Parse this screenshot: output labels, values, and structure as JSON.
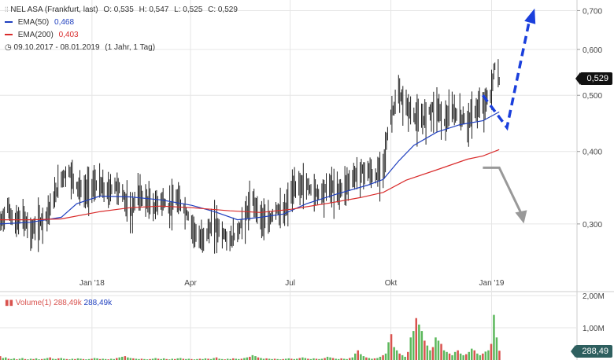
{
  "header": {
    "title": "NEL ASA (Frankfurt, last)",
    "open": "O: 0,535",
    "high": "H: 0,547",
    "low": "L: 0,525",
    "close": "C: 0,529",
    "ema50_label": "EMA(50)",
    "ema50_value": "0,468",
    "ema200_label": "EMA(200)",
    "ema200_value": "0,403",
    "range": "09.10.2017 - 08.01.2019",
    "period": "(1 Jahr, 1 Tag)"
  },
  "price_tag": "0,529",
  "volume": {
    "label": "Volume(1)",
    "value1": "288,49k",
    "value2": "288,49k",
    "tag": "288,49"
  },
  "colors": {
    "price": "#222222",
    "ema50": "#1f3fbf",
    "ema200": "#d92b2b",
    "vol_up": "#5cb85c",
    "vol_down": "#d9534f",
    "arrow_up": "#1a3fdc",
    "arrow_down": "#999999"
  },
  "chart_data": {
    "type": "line",
    "scale": "log",
    "y_ticks": [
      {
        "label": "0,700",
        "value": 0.7
      },
      {
        "label": "0,600",
        "value": 0.6
      },
      {
        "label": "0,500",
        "value": 0.5
      },
      {
        "label": "0,400",
        "value": 0.4
      },
      {
        "label": "0,300",
        "value": 0.3
      }
    ],
    "x_ticks": [
      {
        "label": "Jan '18",
        "date": "2018-01-01"
      },
      {
        "label": "Apr",
        "date": "2018-04-01"
      },
      {
        "label": "Jul",
        "date": "2018-07-01"
      },
      {
        "label": "Okt",
        "date": "2018-10-01"
      },
      {
        "label": "Jan '19",
        "date": "2019-01-01"
      }
    ],
    "x_range": [
      "2017-10-09",
      "2019-03-20"
    ],
    "y_range": [
      0.23,
      0.73
    ],
    "grid": true,
    "series": [
      {
        "name": "NEL ASA",
        "points": [
          [
            "2017-10-09",
            0.3
          ],
          [
            "2017-10-16",
            0.32
          ],
          [
            "2017-10-23",
            0.3
          ],
          [
            "2017-10-30",
            0.31
          ],
          [
            "2017-11-06",
            0.29
          ],
          [
            "2017-11-13",
            0.3
          ],
          [
            "2017-11-20",
            0.31
          ],
          [
            "2017-11-27",
            0.33
          ],
          [
            "2017-12-04",
            0.36
          ],
          [
            "2017-12-11",
            0.37
          ],
          [
            "2017-12-18",
            0.35
          ],
          [
            "2017-12-25",
            0.34
          ],
          [
            "2018-01-01",
            0.35
          ],
          [
            "2018-01-08",
            0.35
          ],
          [
            "2018-01-15",
            0.34
          ],
          [
            "2018-01-22",
            0.35
          ],
          [
            "2018-01-29",
            0.34
          ],
          [
            "2018-02-05",
            0.31
          ],
          [
            "2018-02-12",
            0.34
          ],
          [
            "2018-02-19",
            0.33
          ],
          [
            "2018-02-26",
            0.32
          ],
          [
            "2018-03-05",
            0.33
          ],
          [
            "2018-03-12",
            0.32
          ],
          [
            "2018-03-19",
            0.33
          ],
          [
            "2018-03-26",
            0.32
          ],
          [
            "2018-04-02",
            0.3
          ],
          [
            "2018-04-09",
            0.28
          ],
          [
            "2018-04-16",
            0.29
          ],
          [
            "2018-04-23",
            0.3
          ],
          [
            "2018-04-30",
            0.29
          ],
          [
            "2018-05-07",
            0.28
          ],
          [
            "2018-05-14",
            0.29
          ],
          [
            "2018-05-21",
            0.31
          ],
          [
            "2018-05-28",
            0.33
          ],
          [
            "2018-06-04",
            0.31
          ],
          [
            "2018-06-11",
            0.3
          ],
          [
            "2018-06-18",
            0.32
          ],
          [
            "2018-06-25",
            0.31
          ],
          [
            "2018-07-02",
            0.34
          ],
          [
            "2018-07-09",
            0.35
          ],
          [
            "2018-07-16",
            0.35
          ],
          [
            "2018-07-23",
            0.34
          ],
          [
            "2018-07-30",
            0.34
          ],
          [
            "2018-08-06",
            0.35
          ],
          [
            "2018-08-13",
            0.34
          ],
          [
            "2018-08-20",
            0.35
          ],
          [
            "2018-08-27",
            0.36
          ],
          [
            "2018-09-03",
            0.37
          ],
          [
            "2018-09-10",
            0.37
          ],
          [
            "2018-09-17",
            0.36
          ],
          [
            "2018-09-24",
            0.38
          ],
          [
            "2018-10-01",
            0.46
          ],
          [
            "2018-10-08",
            0.5
          ],
          [
            "2018-10-15",
            0.48
          ],
          [
            "2018-10-22",
            0.46
          ],
          [
            "2018-10-29",
            0.45
          ],
          [
            "2018-11-05",
            0.47
          ],
          [
            "2018-11-12",
            0.48
          ],
          [
            "2018-11-19",
            0.45
          ],
          [
            "2018-11-26",
            0.47
          ],
          [
            "2018-12-03",
            0.46
          ],
          [
            "2018-12-10",
            0.45
          ],
          [
            "2018-12-17",
            0.47
          ],
          [
            "2018-12-24",
            0.48
          ],
          [
            "2018-12-31",
            0.5
          ],
          [
            "2019-01-04",
            0.56
          ],
          [
            "2019-01-08",
            0.529
          ]
        ]
      },
      {
        "name": "EMA(50)",
        "points": [
          [
            "2017-10-09",
            0.3
          ],
          [
            "2017-11-06",
            0.302
          ],
          [
            "2017-12-04",
            0.308
          ],
          [
            "2017-12-18",
            0.325
          ],
          [
            "2018-01-08",
            0.335
          ],
          [
            "2018-02-05",
            0.334
          ],
          [
            "2018-03-05",
            0.33
          ],
          [
            "2018-04-02",
            0.323
          ],
          [
            "2018-04-23",
            0.315
          ],
          [
            "2018-05-14",
            0.305
          ],
          [
            "2018-06-04",
            0.308
          ],
          [
            "2018-06-25",
            0.312
          ],
          [
            "2018-07-16",
            0.325
          ],
          [
            "2018-08-13",
            0.338
          ],
          [
            "2018-09-10",
            0.35
          ],
          [
            "2018-09-24",
            0.358
          ],
          [
            "2018-10-08",
            0.385
          ],
          [
            "2018-10-22",
            0.41
          ],
          [
            "2018-11-12",
            0.432
          ],
          [
            "2018-12-03",
            0.445
          ],
          [
            "2018-12-24",
            0.452
          ],
          [
            "2019-01-08",
            0.468
          ]
        ]
      },
      {
        "name": "EMA(200)",
        "points": [
          [
            "2017-10-09",
            0.305
          ],
          [
            "2017-11-06",
            0.305
          ],
          [
            "2017-12-04",
            0.306
          ],
          [
            "2018-01-08",
            0.315
          ],
          [
            "2018-02-05",
            0.32
          ],
          [
            "2018-03-05",
            0.322
          ],
          [
            "2018-04-02",
            0.32
          ],
          [
            "2018-05-07",
            0.316
          ],
          [
            "2018-06-04",
            0.314
          ],
          [
            "2018-07-02",
            0.318
          ],
          [
            "2018-08-06",
            0.326
          ],
          [
            "2018-09-03",
            0.333
          ],
          [
            "2018-09-24",
            0.34
          ],
          [
            "2018-10-15",
            0.357
          ],
          [
            "2018-11-12",
            0.372
          ],
          [
            "2018-12-10",
            0.388
          ],
          [
            "2018-12-24",
            0.393
          ],
          [
            "2019-01-08",
            0.403
          ]
        ]
      }
    ],
    "projections": [
      {
        "name": "up",
        "points": [
          [
            "2018-12-24",
            0.5
          ],
          [
            "2019-01-15",
            0.44
          ],
          [
            "2019-02-05",
            0.68
          ]
        ]
      },
      {
        "name": "down",
        "points": [
          [
            "2018-12-24",
            0.375
          ],
          [
            "2019-01-08",
            0.375
          ],
          [
            "2019-01-29",
            0.31
          ]
        ]
      }
    ],
    "volume": {
      "y_ticks": [
        {
          "label": "2,00M",
          "value": 2.0
        },
        {
          "label": "1,00M",
          "value": 1.0
        }
      ],
      "y_range": [
        0,
        2.0
      ],
      "bars_k": [
        120,
        60,
        80,
        40,
        30,
        50,
        20,
        40,
        60,
        30,
        20,
        40,
        30,
        50,
        20,
        30,
        40,
        60,
        80,
        40,
        30,
        50,
        60,
        40,
        30,
        20,
        40,
        30,
        50,
        40,
        30,
        20,
        30,
        40,
        60,
        50,
        30,
        40,
        30,
        20,
        40,
        30,
        60,
        80,
        100,
        120,
        80,
        60,
        50,
        40,
        30,
        40,
        30,
        20,
        30,
        40,
        60,
        40,
        30,
        50,
        30,
        20,
        40,
        30,
        50,
        60,
        40,
        30,
        40,
        30,
        20,
        30,
        40,
        30,
        50,
        40,
        30,
        60,
        80,
        40,
        30,
        20,
        40,
        30,
        50,
        40,
        30,
        40,
        60,
        80,
        100,
        150,
        120,
        80,
        60,
        40,
        50,
        40,
        30,
        40,
        30,
        20,
        30,
        40,
        50,
        40,
        30,
        40,
        60,
        80,
        60,
        40,
        30,
        50,
        40,
        30,
        40,
        60,
        100,
        80,
        60,
        40,
        30,
        50,
        40,
        30,
        60,
        80,
        200,
        300,
        180,
        120,
        80,
        60,
        40,
        50,
        60,
        100,
        150,
        200,
        550,
        800,
        400,
        300,
        200,
        150,
        100,
        250,
        700,
        900,
        1300,
        1100,
        900,
        600,
        450,
        300,
        400,
        700,
        600,
        500,
        300,
        250,
        200,
        150,
        250,
        300,
        200,
        150,
        180,
        250,
        350,
        300,
        200,
        150,
        200,
        260,
        300,
        500,
        1400,
        700,
        288
      ]
    }
  }
}
